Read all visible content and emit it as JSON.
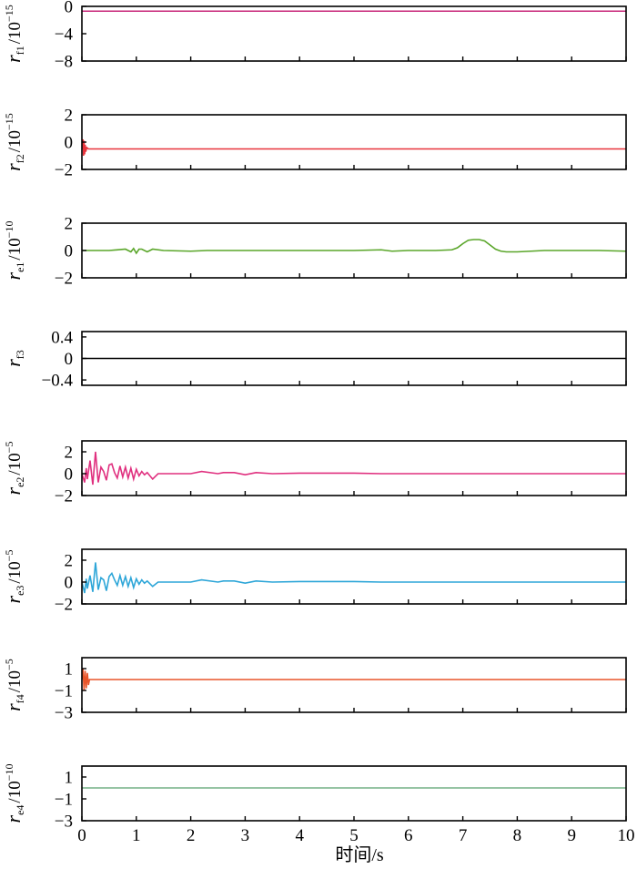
{
  "xlabel": "时间/s",
  "xlim": [
    0,
    10
  ],
  "xticks": [
    0,
    1,
    2,
    3,
    4,
    5,
    6,
    7,
    8,
    9,
    10
  ],
  "chart_data": [
    {
      "type": "line",
      "ylabel": {
        "var": "r",
        "sub": "f1",
        "unit": "/10",
        "exp": "−15"
      },
      "ylim": [
        -8,
        0
      ],
      "yticks": [
        {
          "v": 0,
          "t": "0"
        },
        {
          "v": -4,
          "t": "−4"
        },
        {
          "v": -8,
          "t": "−8"
        }
      ],
      "color": "#c8287a",
      "series": [
        {
          "x": [
            0,
            10
          ],
          "y": [
            -0.7,
            -0.7
          ]
        }
      ]
    },
    {
      "type": "line",
      "ylabel": {
        "var": "r",
        "sub": "f2",
        "unit": "/10",
        "exp": "−15"
      },
      "ylim": [
        -2,
        2
      ],
      "yticks": [
        {
          "v": 2,
          "t": "2"
        },
        {
          "v": 0,
          "t": "0"
        },
        {
          "v": -2,
          "t": "−2"
        }
      ],
      "color": "#e8343c",
      "series": [
        {
          "x": [
            0,
            0.02,
            0.03,
            0.04,
            0.05,
            0.06,
            0.07,
            0.09,
            0.12,
            10
          ],
          "y": [
            -0.5,
            0.2,
            -1.0,
            0.1,
            -0.9,
            -0.2,
            -0.7,
            -0.4,
            -0.5,
            -0.5
          ]
        }
      ]
    },
    {
      "type": "line",
      "ylabel": {
        "var": "r",
        "sub": "e1",
        "unit": "/10",
        "exp": "−10"
      },
      "ylim": [
        -2,
        2
      ],
      "yticks": [
        {
          "v": 2,
          "t": "2"
        },
        {
          "v": 0,
          "t": "0"
        },
        {
          "v": -2,
          "t": "−2"
        }
      ],
      "color": "#5aa62a",
      "series": [
        {
          "x": [
            0,
            0.5,
            0.8,
            0.9,
            0.95,
            1.0,
            1.05,
            1.1,
            1.2,
            1.3,
            1.5,
            2.0,
            2.3,
            3.0,
            4.0,
            4.5,
            5.0,
            5.5,
            5.7,
            6.0,
            6.5,
            6.8,
            6.9,
            7.0,
            7.1,
            7.2,
            7.3,
            7.4,
            7.5,
            7.6,
            7.7,
            7.8,
            8.0,
            8.5,
            9.0,
            9.5,
            10.0
          ],
          "y": [
            0.0,
            0.0,
            0.1,
            -0.1,
            0.15,
            -0.2,
            0.1,
            0.1,
            -0.1,
            0.1,
            0.0,
            -0.05,
            0.0,
            0.0,
            0.0,
            0.0,
            0.0,
            0.05,
            -0.05,
            0.0,
            0.0,
            0.05,
            0.2,
            0.5,
            0.75,
            0.8,
            0.8,
            0.7,
            0.4,
            0.1,
            -0.05,
            -0.1,
            -0.1,
            0.0,
            0.0,
            0.0,
            -0.05
          ]
        }
      ]
    },
    {
      "type": "line",
      "ylabel": {
        "var": "r",
        "sub": "f3",
        "unit": "",
        "exp": ""
      },
      "ylim": [
        -0.5,
        0.5
      ],
      "yticks": [
        {
          "v": 0.4,
          "t": "0.4"
        },
        {
          "v": 0,
          "t": "0"
        },
        {
          "v": -0.4,
          "t": "−0.4"
        }
      ],
      "color": "#000000",
      "series": [
        {
          "x": [
            0,
            10
          ],
          "y": [
            0,
            0
          ]
        }
      ]
    },
    {
      "type": "line",
      "ylabel": {
        "var": "r",
        "sub": "e2",
        "unit": "/10",
        "exp": "−5"
      },
      "ylim": [
        -2,
        3
      ],
      "yticks": [
        {
          "v": 2,
          "t": "2"
        },
        {
          "v": 0,
          "t": "0"
        },
        {
          "v": -2,
          "t": "−2"
        }
      ],
      "color": "#e0307f",
      "series": [
        {
          "x": [
            0,
            0.05,
            0.08,
            0.1,
            0.15,
            0.2,
            0.25,
            0.3,
            0.35,
            0.4,
            0.45,
            0.5,
            0.55,
            0.6,
            0.65,
            0.7,
            0.75,
            0.8,
            0.85,
            0.9,
            0.95,
            1.0,
            1.05,
            1.1,
            1.15,
            1.2,
            1.3,
            1.4,
            2.0,
            2.2,
            2.5,
            2.6,
            2.8,
            3.0,
            3.2,
            3.5,
            4.0,
            4.5,
            5.0,
            5.5,
            10.0
          ],
          "y": [
            0.0,
            -0.8,
            0.5,
            -0.5,
            1.2,
            -1.0,
            2.0,
            -0.8,
            0.6,
            0.2,
            -0.6,
            0.8,
            0.9,
            0.1,
            -0.4,
            0.7,
            -0.3,
            0.6,
            -0.4,
            0.5,
            -0.5,
            0.4,
            -0.2,
            0.2,
            -0.1,
            0.1,
            -0.5,
            0.0,
            0.0,
            0.2,
            0.0,
            0.1,
            0.1,
            -0.1,
            0.1,
            0.0,
            0.05,
            0.05,
            0.05,
            0.0,
            0.0
          ]
        }
      ]
    },
    {
      "type": "line",
      "ylabel": {
        "var": "r",
        "sub": "e3",
        "unit": "/10",
        "exp": "−5"
      },
      "ylim": [
        -2,
        3
      ],
      "yticks": [
        {
          "v": 2,
          "t": "2"
        },
        {
          "v": 0,
          "t": "0"
        },
        {
          "v": -2,
          "t": "−2"
        }
      ],
      "color": "#2ea6d8",
      "series": [
        {
          "x": [
            0,
            0.05,
            0.08,
            0.1,
            0.15,
            0.2,
            0.25,
            0.3,
            0.35,
            0.4,
            0.45,
            0.5,
            0.55,
            0.6,
            0.65,
            0.7,
            0.75,
            0.8,
            0.85,
            0.9,
            0.95,
            1.0,
            1.05,
            1.1,
            1.15,
            1.2,
            1.3,
            1.4,
            2.0,
            2.2,
            2.5,
            2.6,
            2.8,
            3.0,
            3.2,
            3.5,
            4.0,
            4.5,
            5.0,
            5.5,
            10.0
          ],
          "y": [
            0.0,
            -1.0,
            0.3,
            -0.6,
            0.6,
            -0.9,
            1.8,
            -0.7,
            0.4,
            0.2,
            -0.8,
            0.5,
            0.8,
            0.2,
            -0.3,
            0.6,
            -0.3,
            0.5,
            -0.4,
            0.4,
            -0.5,
            0.3,
            -0.2,
            0.2,
            -0.1,
            0.1,
            -0.4,
            0.0,
            0.0,
            0.2,
            0.0,
            0.1,
            0.1,
            -0.1,
            0.1,
            0.0,
            0.05,
            0.05,
            0.05,
            0.0,
            0.0
          ]
        }
      ]
    },
    {
      "type": "line",
      "ylabel": {
        "var": "r",
        "sub": "f4",
        "unit": "/10",
        "exp": "−5"
      },
      "ylim": [
        -3,
        2
      ],
      "yticks": [
        {
          "v": 1,
          "t": "1"
        },
        {
          "v": -1,
          "t": "−1"
        },
        {
          "v": -3,
          "t": "−3"
        }
      ],
      "color": "#e8552a",
      "series": [
        {
          "x": [
            0,
            0.02,
            0.04,
            0.06,
            0.08,
            0.1,
            0.12,
            0.14,
            10
          ],
          "y": [
            0.0,
            1.0,
            -1.0,
            0.8,
            -0.8,
            0.6,
            -0.5,
            0.0,
            0.0
          ]
        }
      ]
    },
    {
      "type": "line",
      "ylabel": {
        "var": "r",
        "sub": "e4",
        "unit": "/10",
        "exp": "−10"
      },
      "ylim": [
        -3,
        2
      ],
      "yticks": [
        {
          "v": 1,
          "t": "1"
        },
        {
          "v": -1,
          "t": "−1"
        },
        {
          "v": -3,
          "t": "−3"
        }
      ],
      "color": "#2e8a4a",
      "series": [
        {
          "x": [
            0,
            10
          ],
          "y": [
            0,
            0
          ]
        }
      ]
    }
  ]
}
